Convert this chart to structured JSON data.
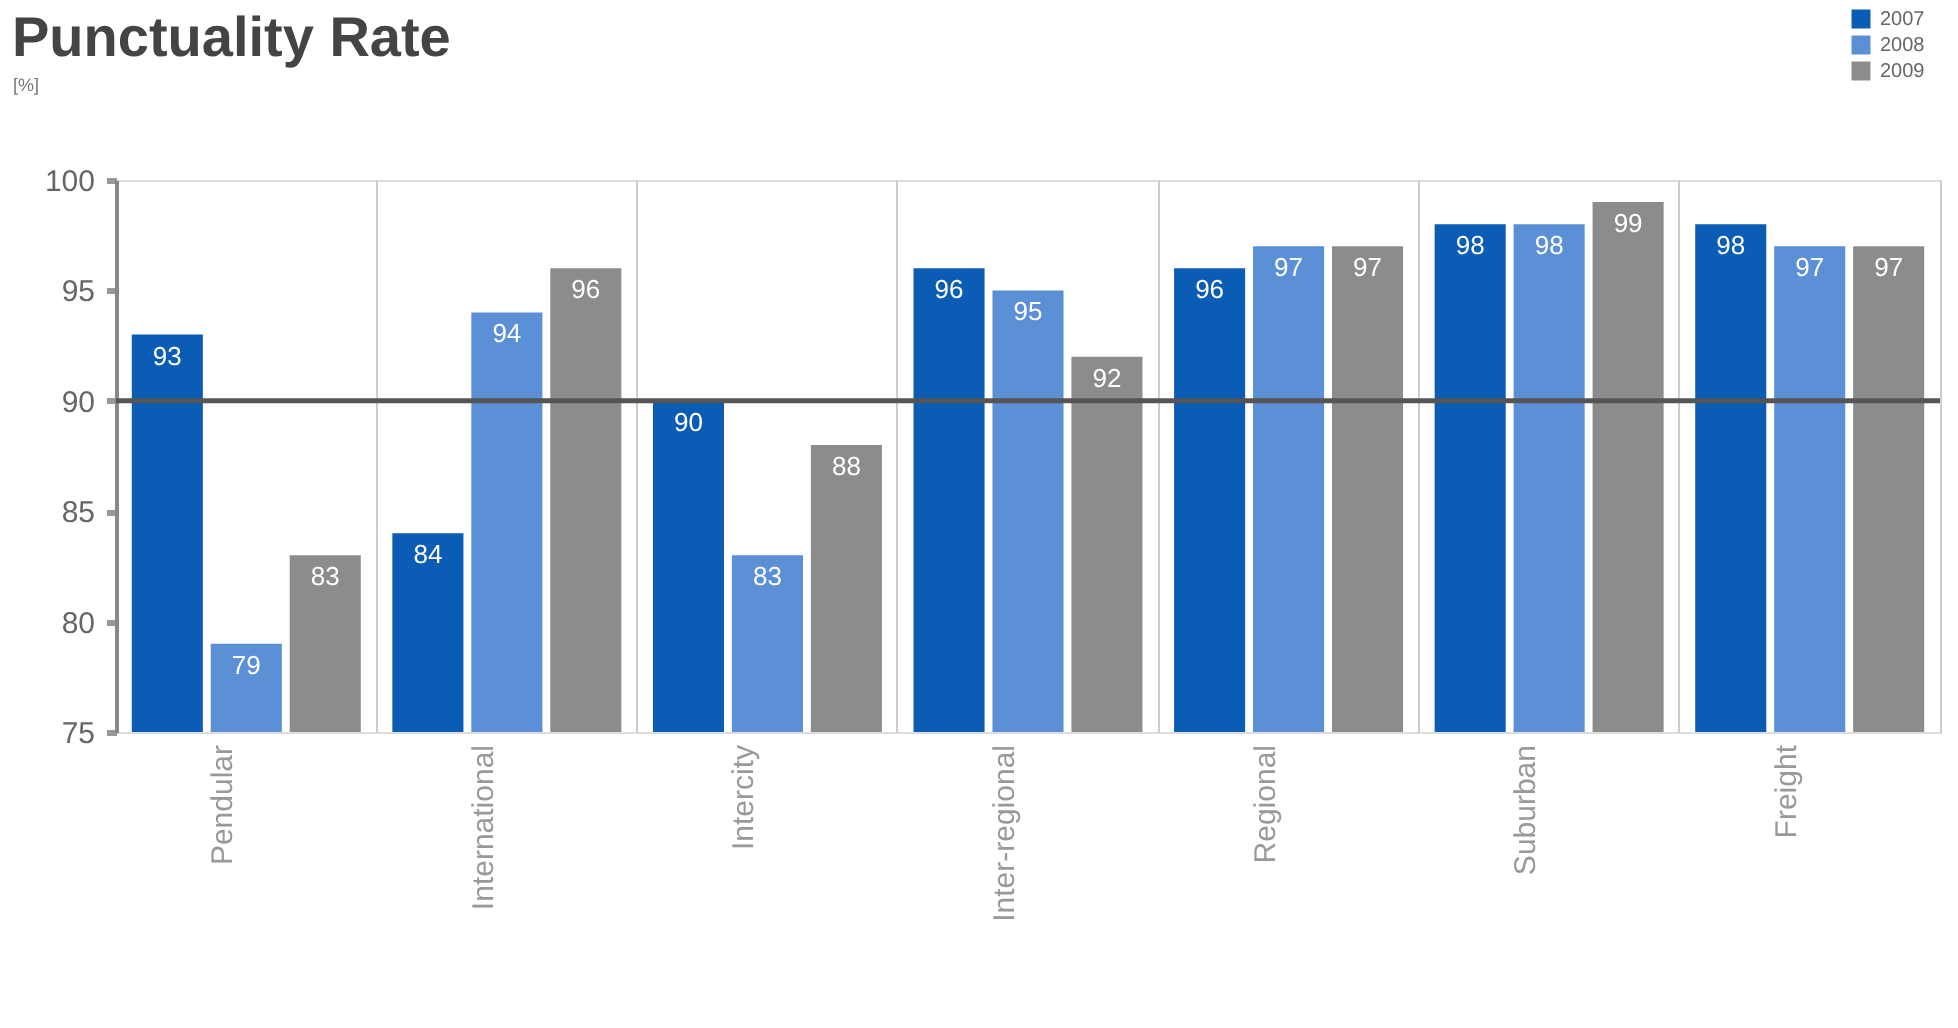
{
  "chart_data": {
    "type": "bar",
    "title": "Punctuality Rate",
    "ylabel": "[%]",
    "categories": [
      "Pendular",
      "International",
      "Intercity",
      "Inter-regional",
      "Regional",
      "Suburban",
      "Freight"
    ],
    "series": [
      {
        "name": "2007",
        "color": "#0b5cb5",
        "values": [
          93,
          84,
          90,
          96,
          96,
          98,
          98
        ]
      },
      {
        "name": "2008",
        "color": "#5b8fd6",
        "values": [
          79,
          94,
          83,
          95,
          97,
          98,
          97
        ]
      },
      {
        "name": "2009",
        "color": "#8c8c8c",
        "values": [
          83,
          96,
          88,
          92,
          97,
          99,
          97
        ]
      }
    ],
    "ylim": [
      75,
      100
    ],
    "yticks": [
      75,
      80,
      85,
      90,
      95,
      100
    ],
    "ref_lines": [
      {
        "axis": "y",
        "value": 90,
        "color": "#555555"
      }
    ],
    "grid": "x",
    "legend": "top right",
    "data_labels": true
  }
}
